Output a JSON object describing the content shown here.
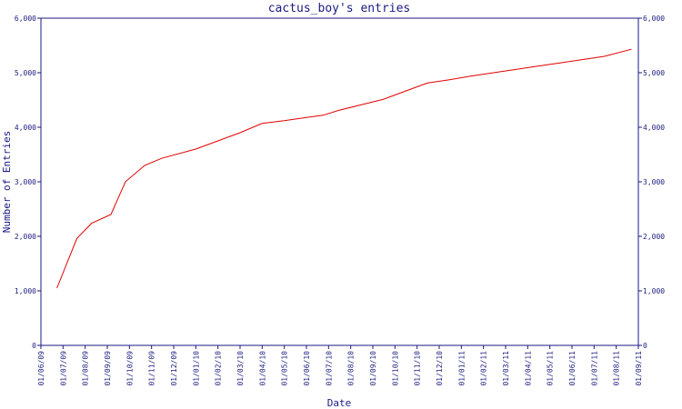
{
  "colors": {
    "axis": "#1a1a80",
    "line": "#e00000",
    "background": "#ffffff"
  },
  "chart_data": {
    "type": "line",
    "title": "cactus_boy's entries",
    "xlabel": "Date",
    "ylabel": "Number of Entries",
    "ylim": [
      0,
      6000
    ],
    "y_ticks": [
      "0",
      "1,000",
      "2,000",
      "3,000",
      "4,000",
      "5,000",
      "6,000"
    ],
    "y2_ticks": [
      "0",
      "1,000",
      "2,000",
      "3,000",
      "4,000",
      "5,000",
      "6,000"
    ],
    "x_tick_labels": [
      "01/06/09",
      "01/07/09",
      "01/08/09",
      "01/09/09",
      "01/10/09",
      "01/11/09",
      "01/12/09",
      "01/01/10",
      "01/02/10",
      "01/03/10",
      "01/04/10",
      "01/05/10",
      "01/06/10",
      "01/07/10",
      "01/08/10",
      "01/09/10",
      "01/10/10",
      "01/11/10",
      "01/12/10",
      "01/01/11",
      "01/02/11",
      "01/03/11",
      "01/04/11",
      "01/05/11",
      "01/06/11",
      "01/07/11",
      "01/08/11",
      "01/09/11"
    ],
    "grid": false,
    "legend": "none",
    "series": [
      {
        "x": [
          "2009-06-23",
          "2009-07-20",
          "2009-08-10",
          "2009-09-06",
          "2009-09-26",
          "2009-10-22",
          "2009-11-15",
          "2010-01-01",
          "2010-03-01",
          "2010-04-01",
          "2010-05-01",
          "2010-06-01",
          "2010-06-24",
          "2010-07-15",
          "2010-08-15",
          "2010-09-15",
          "2010-10-15",
          "2010-11-15",
          "2010-12-15",
          "2011-01-15",
          "2011-02-15",
          "2011-03-15",
          "2011-04-15",
          "2011-05-15",
          "2011-06-15",
          "2011-07-15",
          "2011-08-22"
        ],
        "values": [
          1050,
          1960,
          2240,
          2400,
          3000,
          3300,
          3430,
          3600,
          3900,
          4070,
          4120,
          4180,
          4220,
          4310,
          4410,
          4510,
          4660,
          4810,
          4870,
          4940,
          5000,
          5060,
          5120,
          5180,
          5240,
          5300,
          5430
        ]
      }
    ]
  }
}
